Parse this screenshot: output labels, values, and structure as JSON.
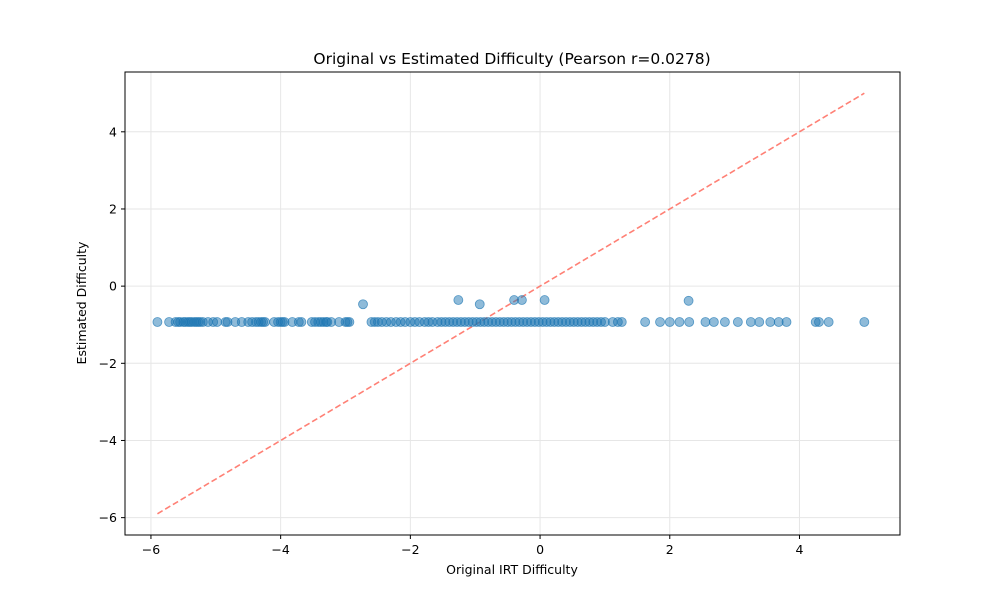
{
  "chart_data": {
    "type": "scatter",
    "title": "Original vs Estimated Difficulty (Pearson r=0.0278)",
    "xlabel": "Original IRT Difficulty",
    "ylabel": "Estimated Difficulty",
    "xlim": [
      -6.4,
      5.55
    ],
    "ylim": [
      -6.45,
      5.55
    ],
    "xticks": [
      -6,
      -4,
      -2,
      0,
      2,
      4
    ],
    "yticks": [
      -6,
      -4,
      -2,
      0,
      2,
      4
    ],
    "xtick_labels": [
      "−6",
      "−4",
      "−2",
      "0",
      "2",
      "4"
    ],
    "ytick_labels": [
      "−6",
      "−4",
      "−2",
      "0",
      "2",
      "4"
    ],
    "grid": true,
    "point_color": "#1f77b4",
    "point_alpha": 0.5,
    "reference_line": {
      "x": [
        -5.9,
        5.0
      ],
      "y": [
        -5.9,
        5.0
      ],
      "color": "#ff6b5e",
      "style": "dashed"
    },
    "series": [
      {
        "x": [
          -5.9,
          -5.72,
          -5.62,
          -5.58,
          -5.55,
          -5.5,
          -5.47,
          -5.43,
          -5.4,
          -5.37,
          -5.33,
          -5.3,
          -5.27,
          -5.24,
          -5.2,
          -5.12,
          -5.04,
          -4.98,
          -4.85,
          -4.82,
          -4.7,
          -4.6,
          -4.5,
          -4.44,
          -4.38,
          -4.34,
          -4.3,
          -4.27,
          -4.24,
          -4.1,
          -4.04,
          -4.0,
          -3.97,
          -3.94,
          -3.82,
          -3.72,
          -3.68,
          -3.52,
          -3.47,
          -3.42,
          -3.38,
          -3.34,
          -3.3,
          -3.28,
          -3.22,
          -3.1,
          -3.0,
          -2.97,
          -2.94,
          -2.6,
          -2.55,
          -2.5,
          -2.44,
          -2.37,
          -2.3,
          -2.22,
          -2.15,
          -2.08,
          -2.0,
          -1.93,
          -1.86,
          -1.78,
          -1.72,
          -1.66,
          -1.58,
          -1.52,
          -1.46,
          -1.4,
          -1.34,
          -1.28,
          -1.22,
          -1.16,
          -1.1,
          -1.04,
          -0.98,
          -0.92,
          -0.86,
          -0.8,
          -0.74,
          -0.68,
          -0.62,
          -0.56,
          -0.5,
          -0.44,
          -0.38,
          -0.32,
          -0.26,
          -0.2,
          -0.14,
          -0.08,
          -0.02,
          0.04,
          0.1,
          0.16,
          0.22,
          0.28,
          0.34,
          0.4,
          0.46,
          0.52,
          0.58,
          0.64,
          0.7,
          0.76,
          0.82,
          0.88,
          0.94,
          1.0,
          1.12,
          1.2,
          1.26,
          1.62,
          1.85,
          2.0,
          2.15,
          2.3,
          2.55,
          2.68,
          2.85,
          3.05,
          3.25,
          3.38,
          3.55,
          3.68,
          3.8,
          4.25,
          4.3,
          4.45,
          5.0,
          -2.73,
          -1.26,
          -0.93,
          -0.4,
          -0.28,
          0.07,
          2.29
        ],
        "y": [
          -0.93,
          -0.93,
          -0.93,
          -0.93,
          -0.93,
          -0.93,
          -0.93,
          -0.93,
          -0.93,
          -0.93,
          -0.93,
          -0.93,
          -0.93,
          -0.93,
          -0.93,
          -0.93,
          -0.93,
          -0.93,
          -0.93,
          -0.93,
          -0.93,
          -0.93,
          -0.93,
          -0.93,
          -0.93,
          -0.93,
          -0.93,
          -0.93,
          -0.93,
          -0.93,
          -0.93,
          -0.93,
          -0.93,
          -0.93,
          -0.93,
          -0.93,
          -0.93,
          -0.93,
          -0.93,
          -0.93,
          -0.93,
          -0.93,
          -0.93,
          -0.93,
          -0.93,
          -0.93,
          -0.93,
          -0.93,
          -0.93,
          -0.93,
          -0.93,
          -0.93,
          -0.93,
          -0.93,
          -0.93,
          -0.93,
          -0.93,
          -0.93,
          -0.93,
          -0.93,
          -0.93,
          -0.93,
          -0.93,
          -0.93,
          -0.93,
          -0.93,
          -0.93,
          -0.93,
          -0.93,
          -0.93,
          -0.93,
          -0.93,
          -0.93,
          -0.93,
          -0.93,
          -0.93,
          -0.93,
          -0.93,
          -0.93,
          -0.93,
          -0.93,
          -0.93,
          -0.93,
          -0.93,
          -0.93,
          -0.93,
          -0.93,
          -0.93,
          -0.93,
          -0.93,
          -0.93,
          -0.93,
          -0.93,
          -0.93,
          -0.93,
          -0.93,
          -0.93,
          -0.93,
          -0.93,
          -0.93,
          -0.93,
          -0.93,
          -0.93,
          -0.93,
          -0.93,
          -0.93,
          -0.93,
          -0.93,
          -0.93,
          -0.93,
          -0.93,
          -0.93,
          -0.93,
          -0.93,
          -0.93,
          -0.93,
          -0.93,
          -0.93,
          -0.93,
          -0.93,
          -0.93,
          -0.93,
          -0.93,
          -0.93,
          -0.93,
          -0.93,
          -0.93,
          -0.93,
          -0.93,
          -0.47,
          -0.36,
          -0.47,
          -0.36,
          -0.36,
          -0.36,
          -0.38
        ]
      }
    ]
  }
}
